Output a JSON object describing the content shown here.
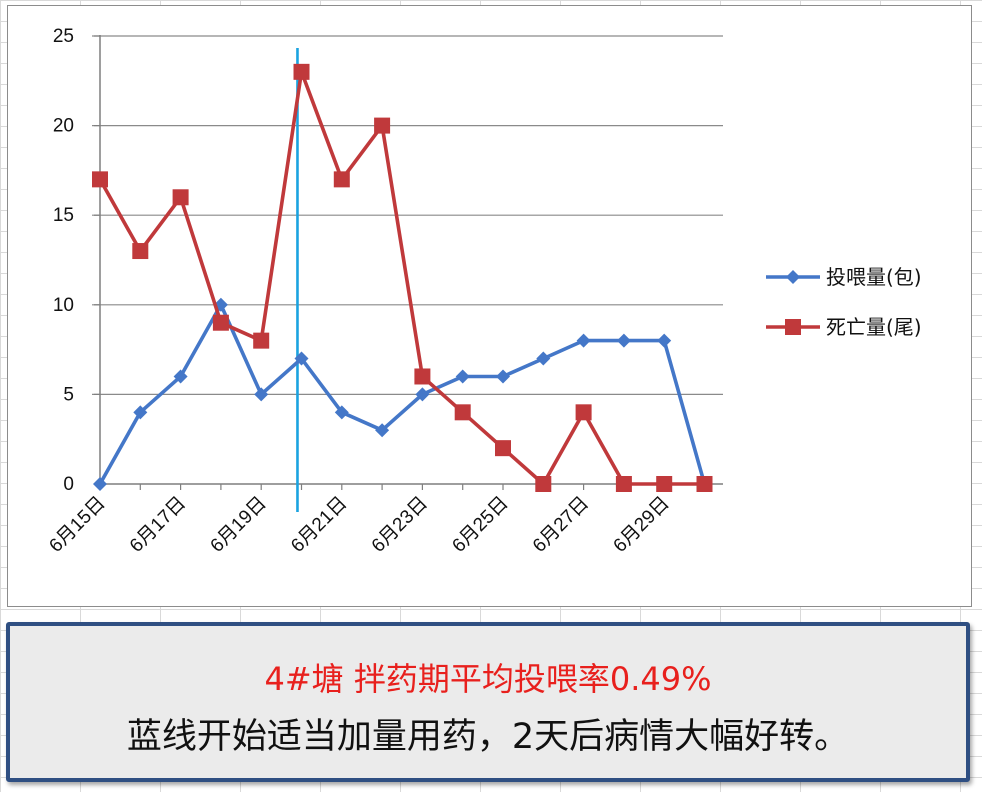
{
  "chart_data": {
    "type": "line",
    "categories": [
      "6月15日",
      "6月16日",
      "6月17日",
      "6月18日",
      "6月19日",
      "6月20日",
      "6月21日",
      "6月22日",
      "6月23日",
      "6月24日",
      "6月25日",
      "6月26日",
      "6月27日",
      "6月28日",
      "6月29日",
      "6月30日"
    ],
    "x_tick_labels": [
      "6月15日",
      "6月17日",
      "6月19日",
      "6月21日",
      "6月23日",
      "6月25日",
      "6月27日",
      "6月29日"
    ],
    "ylim": [
      0,
      25
    ],
    "y_ticks": [
      0,
      5,
      10,
      15,
      20,
      25
    ],
    "grid": true,
    "legend_position": "right",
    "series": [
      {
        "name": "投喂量(包)",
        "color": "#4477c8",
        "marker": "diamond",
        "values": [
          0,
          4,
          6,
          10,
          5,
          7,
          4,
          3,
          5,
          6,
          6,
          7,
          8,
          8,
          8,
          0
        ]
      },
      {
        "name": "死亡量(尾)",
        "color": "#c0393b",
        "marker": "square",
        "values": [
          17,
          13,
          16,
          9,
          8,
          23,
          17,
          20,
          6,
          4,
          2,
          0,
          4,
          0,
          0,
          0
        ]
      }
    ],
    "annotation_line": {
      "color": "#1aa3e0",
      "position_category_index": 4.9
    }
  },
  "caption": {
    "line1": "4#塘 拌药期平均投喂率0.49%",
    "line2": "蓝线开始适当加量用药，2天后病情大幅好转。",
    "line1_color": "#e8201d",
    "border_color": "#2f4f82"
  }
}
